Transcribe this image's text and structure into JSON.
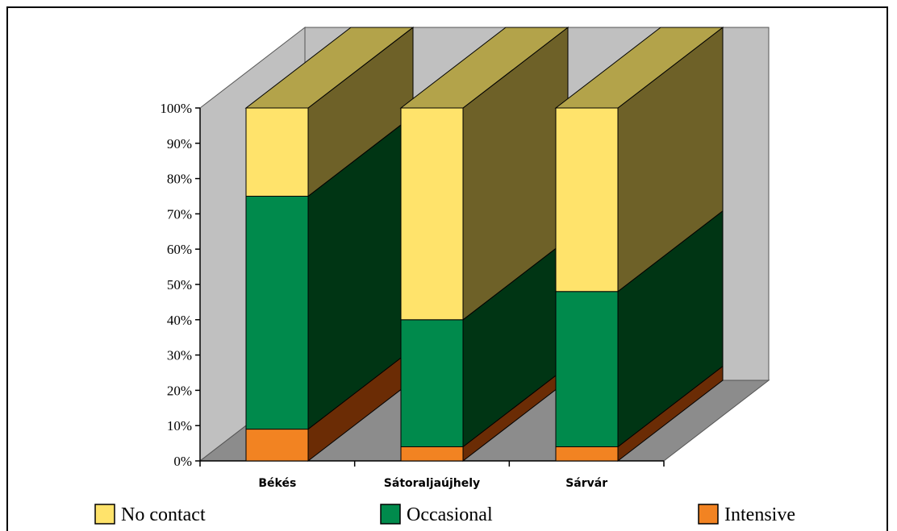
{
  "chart_data": {
    "type": "bar",
    "stacked": "percent",
    "three_d": true,
    "categories": [
      "Békés",
      "Sátoraljaújhely",
      "Sárvár"
    ],
    "series": [
      {
        "name": "Intensive",
        "values": [
          9,
          4,
          4
        ],
        "color": "#f28322",
        "side_color": "#6b2c05"
      },
      {
        "name": "Occasional",
        "values": [
          66,
          36,
          44
        ],
        "color": "#008a4c",
        "side_color": "#003514"
      },
      {
        "name": "No contact",
        "values": [
          25,
          60,
          52
        ],
        "color": "#ffe36b",
        "side_color": "#6e6128",
        "top_color": "#b3a34a"
      }
    ],
    "y_ticks": [
      "0%",
      "10%",
      "20%",
      "30%",
      "40%",
      "50%",
      "60%",
      "70%",
      "80%",
      "90%",
      "100%"
    ],
    "ylim": [
      0,
      100
    ],
    "legend": {
      "position": "bottom",
      "order": [
        "No contact",
        "Occasional",
        "Intensive"
      ]
    },
    "wall_color": "#c0c0c0",
    "floor_color": "#8c8c8c"
  }
}
